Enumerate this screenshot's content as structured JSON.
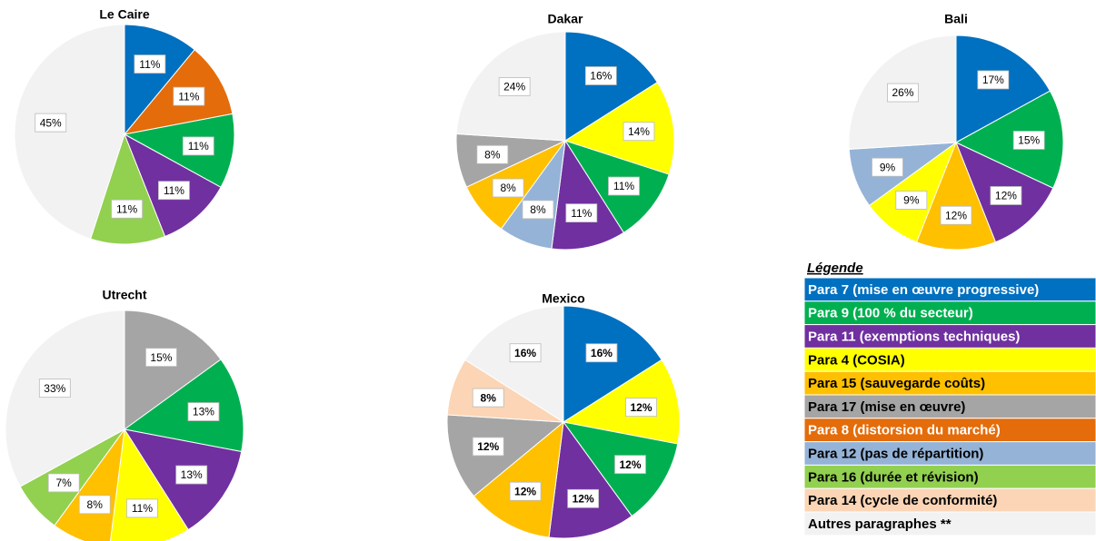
{
  "chart_data": [
    {
      "type": "pie",
      "title": "Le Caire",
      "categories": [
        "Para 7 (mise en œuvre progressive)",
        "Para 8 (distorsion du marché)",
        "Para 9 (100 % du secteur)",
        "Para 11 (exemptions techniques)",
        "Para 16 (durée et révision)",
        "Autres paragraphes **"
      ],
      "colors": [
        "#0070c0",
        "#e46c0a",
        "#00b050",
        "#7030a0",
        "#92d050",
        "#f2f2f2"
      ],
      "values": [
        11,
        11,
        11,
        11,
        11,
        45
      ],
      "value_labels": [
        "11%",
        "11%",
        "11%",
        "11%",
        "11%",
        "45%"
      ]
    },
    {
      "type": "pie",
      "title": "Dakar",
      "categories": [
        "Para 7 (mise en œuvre progressive)",
        "Para 4 (COSIA)",
        "Para 9 (100 % du secteur)",
        "Para 11 (exemptions techniques)",
        "Para 12 (pas de répartition)",
        "Para 15 (sauvegarde coûts)",
        "Para 17 (mise en œuvre)",
        "Autres paragraphes **"
      ],
      "colors": [
        "#0070c0",
        "#ffff00",
        "#00b050",
        "#7030a0",
        "#95b3d7",
        "#ffc000",
        "#a5a5a5",
        "#f2f2f2"
      ],
      "values": [
        16,
        14,
        11,
        11,
        8,
        8,
        8,
        24
      ],
      "value_labels": [
        "16%",
        "14%",
        "11%",
        "11%",
        "8%",
        "8%",
        "8%",
        "24%"
      ]
    },
    {
      "type": "pie",
      "title": "Bali",
      "categories": [
        "Para 7 (mise en œuvre progressive)",
        "Para 9 (100 % du secteur)",
        "Para 11 (exemptions techniques)",
        "Para 15 (sauvegarde coûts)",
        "Para 4 (COSIA)",
        "Para 12 (pas de répartition)",
        "Autres paragraphes **"
      ],
      "colors": [
        "#0070c0",
        "#00b050",
        "#7030a0",
        "#ffc000",
        "#ffff00",
        "#95b3d7",
        "#f2f2f2"
      ],
      "values": [
        17,
        15,
        12,
        12,
        9,
        9,
        26
      ],
      "value_labels": [
        "17%",
        "15%",
        "12%",
        "12%",
        "9%",
        "9%",
        "26%"
      ]
    },
    {
      "type": "pie",
      "title": "Utrecht",
      "categories": [
        "Para 17 (mise en œuvre)",
        "Para 9 (100 % du secteur)",
        "Para 11 (exemptions techniques)",
        "Para 4 (COSIA)",
        "Para 15 (sauvegarde coûts)",
        "Para 16 (durée et révision)",
        "Autres paragraphes **"
      ],
      "colors": [
        "#a5a5a5",
        "#00b050",
        "#7030a0",
        "#ffff00",
        "#ffc000",
        "#92d050",
        "#f2f2f2"
      ],
      "values": [
        15,
        13,
        13,
        11,
        8,
        7,
        33
      ],
      "value_labels": [
        "15%",
        "13%",
        "13%",
        "11%",
        "8%",
        "7%",
        "33%"
      ]
    },
    {
      "type": "pie",
      "title": "Mexico",
      "categories": [
        "Para 7 (mise en œuvre progressive)",
        "Para 4 (COSIA)",
        "Para 9 (100 % du secteur)",
        "Para 11 (exemptions techniques)",
        "Para 15 (sauvegarde coûts)",
        "Para 17 (mise en œuvre)",
        "Para 14 (cycle de conformité)",
        "Autres paragraphes **"
      ],
      "colors": [
        "#0070c0",
        "#ffff00",
        "#00b050",
        "#7030a0",
        "#ffc000",
        "#a5a5a5",
        "#fbd5b5",
        "#f2f2f2"
      ],
      "values": [
        16,
        12,
        12,
        12,
        12,
        12,
        8,
        16
      ],
      "value_labels": [
        "16%",
        "12%",
        "12%",
        "12%",
        "12%",
        "12%",
        "8%",
        "16%"
      ]
    }
  ],
  "legend": {
    "title": "Légende",
    "entries": [
      {
        "name": "Para 7 (mise en œuvre progressive)",
        "color": "#0070c0"
      },
      {
        "name": "Para 9 (100 % du secteur)",
        "color": "#00b050"
      },
      {
        "name": "Para 11 (exemptions techniques)",
        "color": "#7030a0"
      },
      {
        "name": "Para 4 (COSIA)",
        "color": "#ffff00"
      },
      {
        "name": "Para 15 (sauvegarde coûts)",
        "color": "#ffc000"
      },
      {
        "name": "Para 17 (mise en œuvre)",
        "color": "#a5a5a5"
      },
      {
        "name": "Para 8 (distorsion du marché)",
        "color": "#e46c0a"
      },
      {
        "name": "Para 12 (pas de répartition)",
        "color": "#95b3d7"
      },
      {
        "name": "Para 16 (durée et révision)",
        "color": "#92d050"
      },
      {
        "name": "Para 14 (cycle de conformité)",
        "color": "#fbd5b5"
      },
      {
        "name": "Autres paragraphes **",
        "color": "#f2f2f2"
      }
    ]
  }
}
